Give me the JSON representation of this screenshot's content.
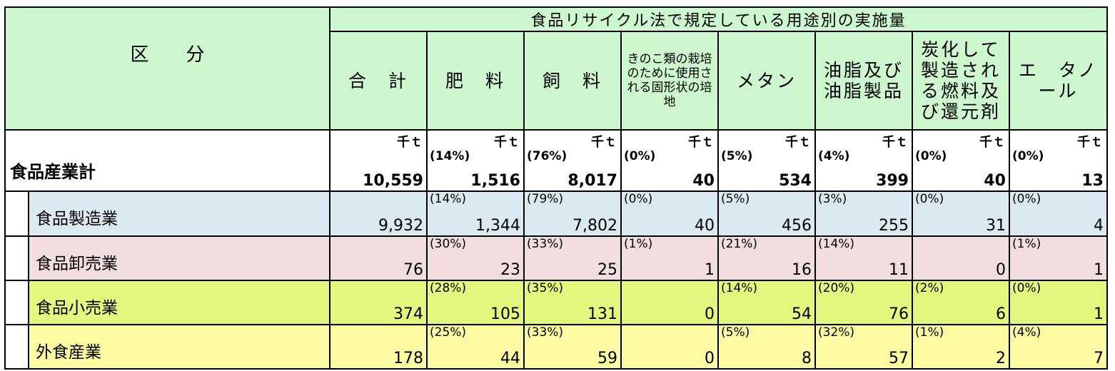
{
  "header": {
    "kubun": "区　　分",
    "group_title": "食品リサイクル法で規定している用途別の実施量",
    "columns": [
      "合　計",
      "肥　料",
      "飼　料",
      "きのこ類の栽培のために使用される固形状の培地",
      "メタン",
      "油脂及び油脂製品",
      "炭化して製造される燃料及び還元剤",
      "エ　タノール"
    ]
  },
  "unit": "千ｔ",
  "total_row": {
    "label": "食品産業計",
    "total": "10,559",
    "cells": [
      {
        "pct": "(14%)",
        "value": "1,516"
      },
      {
        "pct": "(76%)",
        "value": "8,017"
      },
      {
        "pct": "(0%)",
        "value": "40"
      },
      {
        "pct": "(5%)",
        "value": "534"
      },
      {
        "pct": "(4%)",
        "value": "399"
      },
      {
        "pct": "(0%)",
        "value": "40"
      },
      {
        "pct": "(0%)",
        "value": "13"
      }
    ]
  },
  "rows": [
    {
      "label": "食品製造業",
      "color": "#dbeaf0",
      "total": "9,932",
      "cells": [
        {
          "pct": "(14%)",
          "value": "1,344"
        },
        {
          "pct": "(79%)",
          "value": "7,802"
        },
        {
          "pct": "(0%)",
          "value": "40"
        },
        {
          "pct": "(5%)",
          "value": "456"
        },
        {
          "pct": "(3%)",
          "value": "255"
        },
        {
          "pct": "(0%)",
          "value": "31"
        },
        {
          "pct": "(0%)",
          "value": "4"
        }
      ]
    },
    {
      "label": "食品卸売業",
      "color": "#f2dede",
      "total": "76",
      "cells": [
        {
          "pct": "(30%)",
          "value": "23"
        },
        {
          "pct": "(33%)",
          "value": "25"
        },
        {
          "pct": "(1%)",
          "value": "1"
        },
        {
          "pct": "(21%)",
          "value": "16"
        },
        {
          "pct": "(14%)",
          "value": "11"
        },
        {
          "pct": "",
          "value": "0"
        },
        {
          "pct": "(1%)",
          "value": "1"
        }
      ]
    },
    {
      "label": "食品小売業",
      "color": "#e3f77e",
      "total": "374",
      "cells": [
        {
          "pct": "(28%)",
          "value": "105"
        },
        {
          "pct": "(35%)",
          "value": "131"
        },
        {
          "pct": "",
          "value": "0"
        },
        {
          "pct": "(14%)",
          "value": "54"
        },
        {
          "pct": "(20%)",
          "value": "76"
        },
        {
          "pct": "(2%)",
          "value": "6"
        },
        {
          "pct": "(0%)",
          "value": "1"
        }
      ]
    },
    {
      "label": "外食産業",
      "color": "#fcfba3",
      "total": "178",
      "cells": [
        {
          "pct": "(25%)",
          "value": "44"
        },
        {
          "pct": "(33%)",
          "value": "59"
        },
        {
          "pct": "",
          "value": "0"
        },
        {
          "pct": "(5%)",
          "value": "8"
        },
        {
          "pct": "(32%)",
          "value": "57"
        },
        {
          "pct": "(1%)",
          "value": "2"
        },
        {
          "pct": "(4%)",
          "value": "7"
        }
      ]
    }
  ]
}
